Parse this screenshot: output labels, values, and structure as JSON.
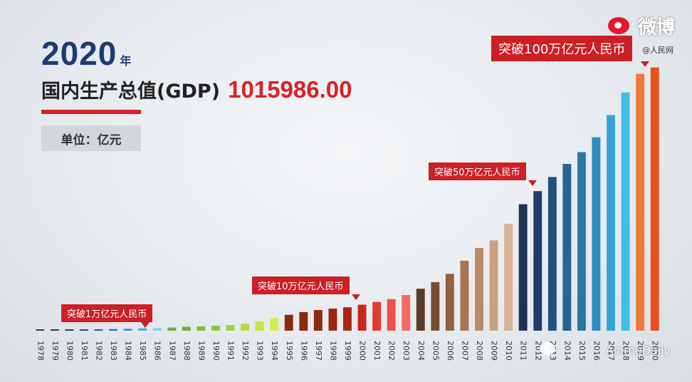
{
  "header": {
    "year": "2020",
    "year_unit": "年",
    "gdp_label": "国内生产总值(GDP)",
    "gdp_value": "1015986.00",
    "unit_label": "单位：亿元"
  },
  "callouts": {
    "c1": "突破1万亿元人民币",
    "c10": "突破10万亿元人民币",
    "c50": "突破50万亿元人民币",
    "c100": "突破100万亿元人民币"
  },
  "watermarks": {
    "weibo": "微博",
    "rmw": "@人民网",
    "daily": "AnimeDaily"
  },
  "colors": {
    "accent_red": "#d92128",
    "title_blue": "#1d3b72"
  },
  "chart_data": {
    "type": "bar",
    "title": "",
    "xlabel": "",
    "ylabel": "",
    "ylim": [
      0,
      1100000
    ],
    "categories": [
      "1978",
      "1979",
      "1980",
      "1981",
      "1982",
      "1983",
      "1984",
      "1985",
      "1986",
      "1987",
      "1988",
      "1989",
      "1990",
      "1991",
      "1992",
      "1993",
      "1994",
      "1995",
      "1996",
      "1997",
      "1998",
      "1999",
      "2000",
      "2001",
      "2002",
      "2003",
      "2004",
      "2005",
      "2006",
      "2007",
      "2008",
      "2009",
      "2010",
      "2011",
      "2012",
      "2013",
      "2014",
      "2015",
      "2016",
      "2017",
      "2018",
      "2019",
      "2020"
    ],
    "values": [
      3679,
      4101,
      4588,
      4936,
      5373,
      6021,
      7279,
      9099,
      10376,
      12175,
      15180,
      17180,
      18873,
      22006,
      27195,
      35673,
      48638,
      61340,
      71814,
      79715,
      85196,
      90564,
      100280,
      110863,
      121717,
      137422,
      161840,
      187319,
      219439,
      270092,
      319245,
      348518,
      412119,
      487940,
      538580,
      592963,
      643563,
      688858,
      746395,
      832036,
      919281,
      990865,
      1015986
    ],
    "colors": [
      "#2d3a52",
      "#2d3a52",
      "#2d3a52",
      "#2e4a78",
      "#2e5a96",
      "#3070b4",
      "#3690d0",
      "#4ab0e0",
      "#6fd8ee",
      "#7aaa3c",
      "#7aaa3c",
      "#84b83e",
      "#8cc63f",
      "#a0d040",
      "#b4dc40",
      "#c8e640",
      "#d6ec48",
      "#8b2a0e",
      "#8b2a0e",
      "#8b2a0e",
      "#9a2810",
      "#ac2412",
      "#c8281a",
      "#e23a2e",
      "#f0504a",
      "#f46a60",
      "#5a3a2a",
      "#7a4a32",
      "#946040",
      "#a87452",
      "#bc8a66",
      "#cca07e",
      "#d8b496",
      "#1e3452",
      "#1e3d68",
      "#22507e",
      "#266492",
      "#2a78a8",
      "#2e8cbe",
      "#34a4d2",
      "#3ec0e6",
      "#f07838",
      "#e8501e"
    ]
  }
}
